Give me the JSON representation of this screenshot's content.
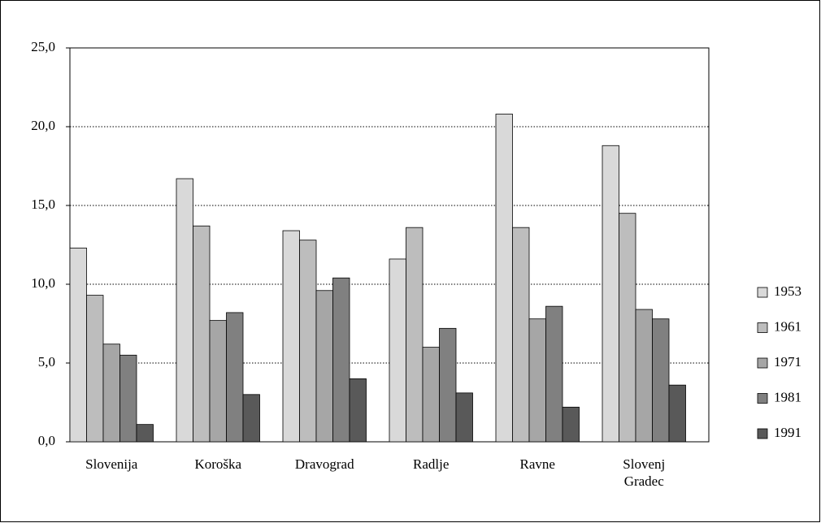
{
  "chart_data": {
    "type": "bar",
    "categories": [
      "Slovenija",
      "Koroška",
      "Dravograd",
      "Radlje",
      "Ravne",
      "Slovenj Gradec"
    ],
    "series": [
      {
        "name": "1953",
        "color": "#d9d9d9",
        "values": [
          12.3,
          16.7,
          13.4,
          11.6,
          20.8,
          18.8
        ]
      },
      {
        "name": "1961",
        "color": "#bdbdbd",
        "values": [
          9.3,
          13.7,
          12.8,
          13.6,
          13.6,
          14.5
        ]
      },
      {
        "name": "1971",
        "color": "#a6a6a6",
        "values": [
          6.2,
          7.7,
          9.6,
          6.0,
          7.8,
          8.4
        ]
      },
      {
        "name": "1981",
        "color": "#808080",
        "values": [
          5.5,
          8.2,
          10.4,
          7.2,
          8.6,
          7.8
        ]
      },
      {
        "name": "1991",
        "color": "#595959",
        "values": [
          1.1,
          3.0,
          4.0,
          3.1,
          2.2,
          3.6
        ]
      }
    ],
    "ylim": [
      0,
      25
    ],
    "yticks": [
      {
        "value": 0,
        "label": "0,0"
      },
      {
        "value": 5,
        "label": "5,0"
      },
      {
        "value": 10,
        "label": "10,0"
      },
      {
        "value": 15,
        "label": "15,0"
      },
      {
        "value": 20,
        "label": "20,0"
      },
      {
        "value": 25,
        "label": "25,0"
      }
    ],
    "grid": true,
    "legend": "right"
  }
}
